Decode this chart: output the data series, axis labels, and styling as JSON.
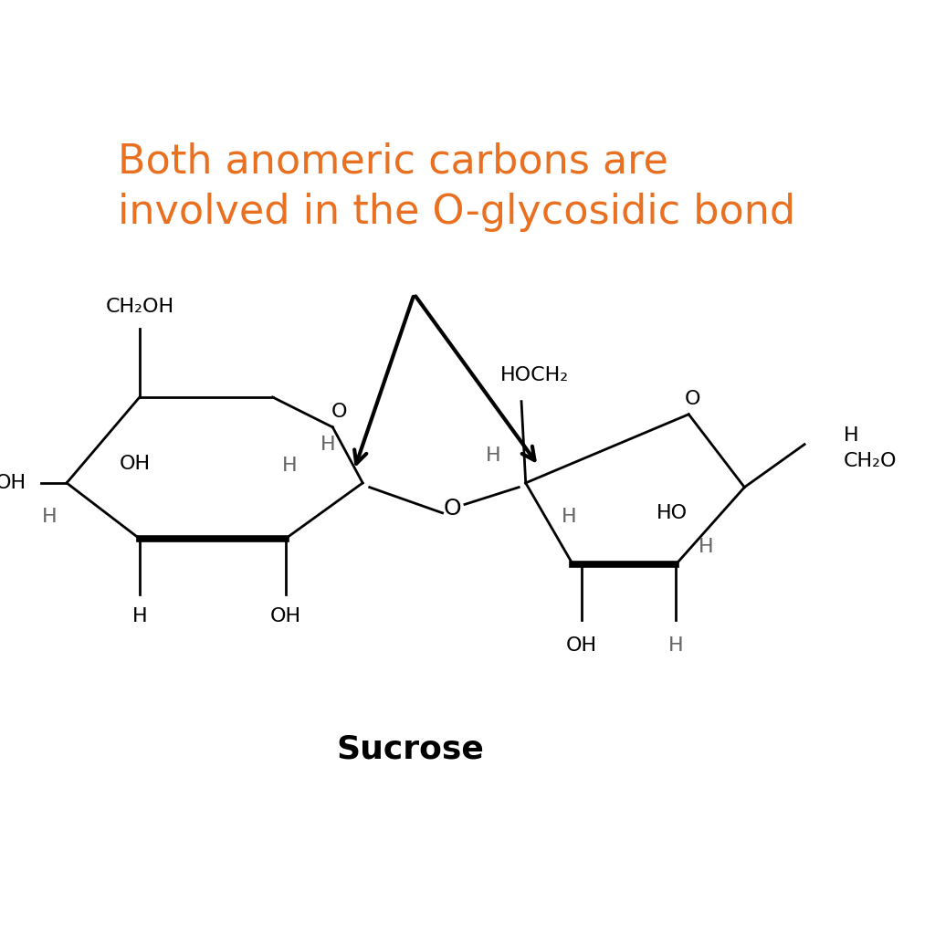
{
  "title_line1": "Both anomeric carbons are",
  "title_line2": "involved in the O-glycosidic bond",
  "title_color": "#E87020",
  "label_color": "#666666",
  "bg_color": "#FFFFFF",
  "molecule_label": "Sucrose",
  "title_fontsize": 32,
  "label_fontsize": 16,
  "molecule_label_fontsize": 26
}
